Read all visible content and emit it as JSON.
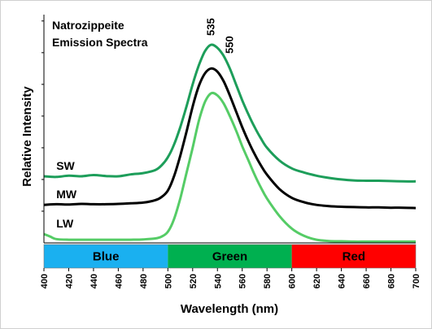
{
  "chart_data": {
    "type": "line",
    "title": [
      "Natrozippeite",
      "Emission Spectra"
    ],
    "xlabel": "Wavelength (nm)",
    "ylabel": "Relative Intensity",
    "xlim": [
      400,
      700
    ],
    "ylim": [
      0,
      7.2
    ],
    "x_ticks": [
      400,
      420,
      440,
      460,
      480,
      500,
      520,
      540,
      560,
      580,
      600,
      620,
      640,
      660,
      680,
      700
    ],
    "grid": false,
    "annotations": [
      {
        "text": "535",
        "x": 535
      },
      {
        "text": "550",
        "x": 550
      }
    ],
    "color_bands": [
      {
        "label": "Blue",
        "from": 400,
        "to": 500,
        "color": "#1ab0f0"
      },
      {
        "label": "Green",
        "from": 500,
        "to": 600,
        "color": "#00b050"
      },
      {
        "label": "Red",
        "from": 600,
        "to": 700,
        "color": "#ff0000"
      }
    ],
    "series": [
      {
        "name": "SW",
        "color": "#1d9e5a",
        "x": [
          400,
          410,
          420,
          430,
          440,
          450,
          460,
          470,
          480,
          490,
          495,
          500,
          505,
          510,
          515,
          520,
          525,
          530,
          535,
          540,
          545,
          550,
          555,
          560,
          565,
          570,
          575,
          580,
          590,
          600,
          610,
          620,
          630,
          640,
          650,
          660,
          670,
          680,
          690,
          700
        ],
        "y": [
          2.1,
          2.08,
          2.12,
          2.1,
          2.14,
          2.11,
          2.1,
          2.16,
          2.2,
          2.3,
          2.45,
          2.7,
          3.1,
          3.65,
          4.3,
          5.0,
          5.6,
          6.05,
          6.25,
          6.15,
          5.9,
          5.5,
          5.0,
          4.5,
          4.05,
          3.65,
          3.3,
          3.0,
          2.6,
          2.35,
          2.22,
          2.12,
          2.05,
          2.0,
          1.97,
          1.96,
          1.96,
          1.95,
          1.94,
          1.94
        ]
      },
      {
        "name": "MW",
        "color": "#000000",
        "x": [
          400,
          410,
          420,
          430,
          440,
          450,
          460,
          470,
          480,
          490,
          495,
          500,
          505,
          510,
          515,
          520,
          525,
          530,
          535,
          540,
          545,
          550,
          555,
          560,
          565,
          570,
          575,
          580,
          590,
          600,
          610,
          620,
          630,
          640,
          650,
          660,
          670,
          680,
          690,
          700
        ],
        "y": [
          1.2,
          1.22,
          1.21,
          1.23,
          1.22,
          1.22,
          1.23,
          1.25,
          1.27,
          1.35,
          1.45,
          1.65,
          2.1,
          2.75,
          3.5,
          4.3,
          4.95,
          5.35,
          5.5,
          5.4,
          5.1,
          4.65,
          4.15,
          3.65,
          3.2,
          2.8,
          2.45,
          2.15,
          1.7,
          1.42,
          1.28,
          1.2,
          1.16,
          1.14,
          1.13,
          1.12,
          1.12,
          1.11,
          1.11,
          1.1
        ]
      },
      {
        "name": "LW",
        "color": "#55cc66",
        "x": [
          400,
          405,
          410,
          420,
          430,
          440,
          450,
          460,
          470,
          480,
          490,
          495,
          500,
          505,
          510,
          515,
          520,
          525,
          530,
          535,
          540,
          545,
          550,
          555,
          560,
          565,
          570,
          575,
          580,
          590,
          600,
          610,
          620,
          630,
          640,
          650,
          660,
          670,
          680,
          690,
          700
        ],
        "y": [
          0.28,
          0.2,
          0.12,
          0.1,
          0.1,
          0.1,
          0.1,
          0.1,
          0.1,
          0.11,
          0.14,
          0.2,
          0.35,
          0.75,
          1.4,
          2.2,
          3.0,
          3.85,
          4.45,
          4.72,
          4.65,
          4.4,
          4.0,
          3.55,
          3.05,
          2.6,
          2.15,
          1.75,
          1.4,
          0.85,
          0.45,
          0.22,
          0.1,
          0.06,
          0.05,
          0.04,
          0.04,
          0.04,
          0.04,
          0.04,
          0.04
        ]
      }
    ]
  }
}
